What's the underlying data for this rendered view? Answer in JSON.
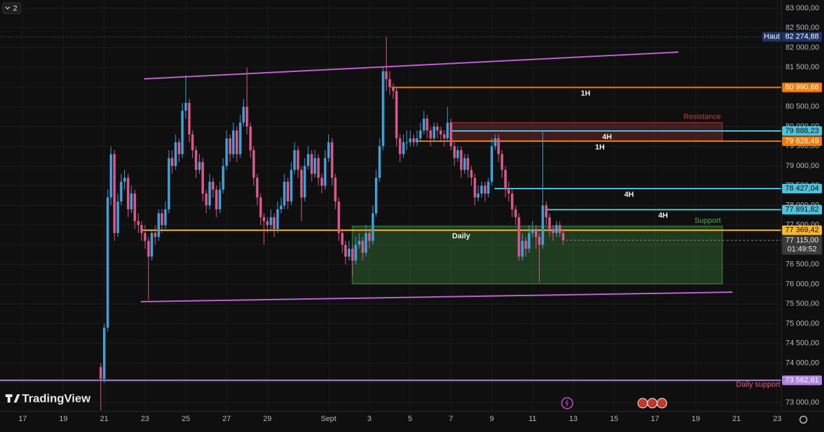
{
  "ui": {
    "layout_button": "2",
    "logo": "TradingView"
  },
  "chart_data": {
    "type": "candlestick",
    "up_color": "#3f9fd6",
    "down_color": "#d9588a",
    "xlim": [
      -1.11,
      37.2
    ],
    "ylim": [
      72774,
      83209
    ],
    "grid": true,
    "xticks": [
      {
        "value": 0,
        "label": "17"
      },
      {
        "value": 2,
        "label": "19"
      },
      {
        "value": 4,
        "label": "21"
      },
      {
        "value": 6,
        "label": "23"
      },
      {
        "value": 8,
        "label": "25"
      },
      {
        "value": 10,
        "label": "27"
      },
      {
        "value": 12,
        "label": "29"
      },
      {
        "value": 15,
        "label": "Sept"
      },
      {
        "value": 17,
        "label": "3"
      },
      {
        "value": 19,
        "label": "5"
      },
      {
        "value": 21,
        "label": "7"
      },
      {
        "value": 23,
        "label": "9"
      },
      {
        "value": 25,
        "label": "11"
      },
      {
        "value": 27,
        "label": "13"
      },
      {
        "value": 29,
        "label": "15"
      },
      {
        "value": 31,
        "label": "17"
      },
      {
        "value": 33,
        "label": "19"
      },
      {
        "value": 35,
        "label": "21"
      },
      {
        "value": 37,
        "label": "23"
      }
    ],
    "yticks": [
      {
        "value": 73000,
        "label": "73 000,00"
      },
      {
        "value": 73500,
        "label": "73 500,00"
      },
      {
        "value": 74000,
        "label": "74 000,00"
      },
      {
        "value": 74500,
        "label": "74 500,00"
      },
      {
        "value": 75000,
        "label": "75 000,00"
      },
      {
        "value": 75500,
        "label": "75 500,00"
      },
      {
        "value": 76000,
        "label": "76 000,00"
      },
      {
        "value": 76500,
        "label": "76 500,00"
      },
      {
        "value": 77000,
        "label": "77 000,00"
      },
      {
        "value": 77500,
        "label": "77 500,00"
      },
      {
        "value": 78000,
        "label": "78 000,00"
      },
      {
        "value": 78500,
        "label": "78 500,00"
      },
      {
        "value": 79000,
        "label": "79 000,00"
      },
      {
        "value": 79500,
        "label": "79 500,00"
      },
      {
        "value": 80000,
        "label": "80 000,00"
      },
      {
        "value": 80500,
        "label": "80 500,00"
      },
      {
        "value": 81000,
        "label": "81 000,00"
      },
      {
        "value": 81500,
        "label": "81 500,00"
      },
      {
        "value": 82000,
        "label": "82 000,00"
      },
      {
        "value": 82500,
        "label": "82 500,00"
      },
      {
        "value": 83000,
        "label": "83 000,00"
      }
    ],
    "x": [
      3.83,
      4,
      4.17,
      4.33,
      4.5,
      4.67,
      4.83,
      5,
      5.17,
      5.33,
      5.5,
      5.67,
      5.83,
      6,
      6.17,
      6.33,
      6.5,
      6.67,
      6.83,
      7,
      7.17,
      7.33,
      7.5,
      7.67,
      7.83,
      8,
      8.17,
      8.33,
      8.5,
      8.67,
      8.83,
      9,
      9.17,
      9.33,
      9.5,
      9.67,
      9.83,
      10,
      10.17,
      10.33,
      10.5,
      10.67,
      10.83,
      11,
      11.17,
      11.33,
      11.5,
      11.67,
      11.83,
      12,
      12.17,
      12.33,
      12.5,
      12.67,
      12.83,
      13,
      13.17,
      13.33,
      13.5,
      13.67,
      13.83,
      14,
      14.17,
      14.33,
      14.5,
      14.67,
      14.83,
      15,
      15.17,
      15.33,
      15.5,
      15.67,
      15.83,
      16,
      16.17,
      16.33,
      16.5,
      16.67,
      16.83,
      17,
      17.17,
      17.33,
      17.5,
      17.67,
      17.83,
      18,
      18.17,
      18.33,
      18.5,
      18.67,
      18.83,
      19,
      19.17,
      19.33,
      19.5,
      19.67,
      19.83,
      20,
      20.17,
      20.33,
      20.5,
      20.67,
      20.83,
      21,
      21.17,
      21.33,
      21.5,
      21.67,
      21.83,
      22,
      22.17,
      22.33,
      22.5,
      22.67,
      22.83,
      23,
      23.17,
      23.33,
      23.5,
      23.67,
      23.83,
      24,
      24.17,
      24.33,
      24.5,
      24.67,
      24.83,
      25,
      25.17,
      25.33,
      25.5,
      25.67,
      25.83,
      26,
      26.17,
      26.33,
      26.5
    ],
    "open": [
      73900,
      73600,
      74900,
      78200,
      79300,
      77300,
      78100,
      78600,
      78700,
      77900,
      78300,
      77600,
      77500,
      77300,
      77100,
      76700,
      77300,
      77200,
      77800,
      77500,
      77900,
      79200,
      79000,
      79600,
      79300,
      80400,
      80600,
      79800,
      79400,
      78900,
      79100,
      78300,
      78000,
      78600,
      78400,
      77900,
      78400,
      79000,
      79700,
      79300,
      79900,
      79300,
      80100,
      80500,
      80000,
      79400,
      78700,
      78200,
      77700,
      77600,
      77500,
      77700,
      77400,
      77900,
      78000,
      78600,
      78100,
      78900,
      79400,
      78900,
      78200,
      79000,
      79300,
      78800,
      79200,
      78700,
      78500,
      79200,
      79600,
      78700,
      78100,
      77300,
      77000,
      76700,
      76900,
      76600,
      77000,
      77100,
      76800,
      77300,
      77100,
      77800,
      78700,
      79500,
      81400,
      81200,
      81000,
      80900,
      79700,
      79300,
      79600,
      79600,
      79700,
      79600,
      79700,
      79900,
      80200,
      79900,
      79700,
      80000,
      79900,
      79800,
      79700,
      80100,
      79500,
      79200,
      79400,
      78900,
      79200,
      78900,
      78700,
      78200,
      78300,
      78500,
      78300,
      78600,
      79500,
      79700,
      79300,
      78900,
      78400,
      78300,
      77900,
      77700,
      76700,
      77100,
      76900,
      77300,
      77400,
      77200,
      77000,
      78000,
      77700,
      77400,
      77300,
      77500,
      77300
    ],
    "high": [
      74000,
      75000,
      78400,
      79500,
      79400,
      78300,
      78800,
      78900,
      78800,
      78500,
      78400,
      77800,
      77600,
      77500,
      77200,
      77400,
      77500,
      77900,
      77900,
      78100,
      79400,
      79400,
      79800,
      79700,
      80600,
      81300,
      80700,
      79900,
      79500,
      79300,
      79200,
      78400,
      78800,
      78700,
      78500,
      78600,
      79200,
      79900,
      79800,
      80100,
      80000,
      80300,
      80700,
      81500,
      80100,
      79500,
      78800,
      78300,
      77800,
      77700,
      77900,
      77800,
      78100,
      78200,
      78800,
      78700,
      79100,
      79600,
      79500,
      79000,
      79200,
      79500,
      79400,
      79400,
      79300,
      78800,
      79400,
      79800,
      79700,
      78800,
      78200,
      77400,
      77100,
      77100,
      77000,
      77200,
      77300,
      77200,
      77500,
      77400,
      78000,
      78900,
      79700,
      81500,
      82275,
      81400,
      81100,
      81000,
      79800,
      79800,
      79900,
      79900,
      79800,
      79900,
      80100,
      80400,
      80300,
      80000,
      80100,
      80100,
      80000,
      79900,
      80500,
      80200,
      79600,
      79500,
      79500,
      79300,
      79300,
      79000,
      78800,
      78500,
      78600,
      78600,
      78700,
      79700,
      79800,
      79800,
      79400,
      79000,
      78600,
      78400,
      78000,
      77800,
      77300,
      77200,
      77500,
      77600,
      77500,
      77300,
      79900,
      78100,
      77800,
      77500,
      77600,
      77600,
      77400
    ],
    "low": [
      72800,
      73500,
      74800,
      78000,
      77100,
      77200,
      78000,
      78400,
      77700,
      77800,
      77400,
      77300,
      77100,
      76900,
      75600,
      76600,
      77000,
      77100,
      77300,
      77400,
      77800,
      78800,
      78900,
      79100,
      79200,
      80200,
      79600,
      79200,
      78700,
      78800,
      78100,
      77800,
      77900,
      78200,
      77700,
      77800,
      78300,
      78900,
      79100,
      79200,
      79100,
      79200,
      80000,
      79800,
      79200,
      78500,
      78000,
      77500,
      77000,
      77300,
      77400,
      77200,
      77300,
      77800,
      77900,
      77900,
      78000,
      78800,
      78700,
      77600,
      78100,
      78900,
      78600,
      78700,
      78500,
      78300,
      78400,
      79100,
      78500,
      77900,
      77100,
      76800,
      76500,
      76600,
      76200,
      76500,
      76900,
      76600,
      76700,
      76900,
      77000,
      77700,
      78600,
      79400,
      80900,
      80800,
      80700,
      79500,
      79100,
      79200,
      79400,
      79500,
      79500,
      79500,
      79600,
      79800,
      79700,
      79500,
      79600,
      79700,
      79600,
      79500,
      79600,
      79400,
      79000,
      79100,
      78700,
      78800,
      78700,
      78500,
      78000,
      78100,
      78200,
      78100,
      78200,
      78500,
      79400,
      79100,
      78700,
      78200,
      78100,
      77700,
      77500,
      76600,
      76600,
      76700,
      76800,
      77200,
      76900,
      76050,
      76900,
      77500,
      77200,
      77100,
      77200,
      77200,
      77000
    ],
    "close": [
      73600,
      74900,
      78200,
      79300,
      77300,
      78100,
      78600,
      78700,
      77900,
      78300,
      77600,
      77500,
      77300,
      77100,
      76700,
      77300,
      77200,
      77800,
      77500,
      77900,
      79200,
      79000,
      79600,
      79300,
      80400,
      80600,
      79800,
      79400,
      78900,
      79100,
      78300,
      78000,
      78600,
      78400,
      77900,
      78400,
      79000,
      79700,
      79300,
      79900,
      79300,
      80100,
      80500,
      80000,
      79400,
      78700,
      78200,
      77700,
      77600,
      77500,
      77700,
      77400,
      77900,
      78000,
      78600,
      78100,
      78900,
      79400,
      78900,
      78200,
      79000,
      79300,
      78800,
      79200,
      78700,
      78500,
      79200,
      79600,
      78700,
      78100,
      77300,
      77000,
      76700,
      76900,
      76600,
      77000,
      77100,
      76800,
      77300,
      77100,
      77800,
      78700,
      79500,
      81400,
      81200,
      81000,
      80900,
      79700,
      79300,
      79600,
      79600,
      79700,
      79600,
      79700,
      79900,
      80200,
      79900,
      79700,
      80000,
      79900,
      79800,
      79700,
      80100,
      79500,
      79200,
      79400,
      78900,
      79200,
      78900,
      78700,
      78200,
      78300,
      78500,
      78300,
      78600,
      79500,
      79700,
      79300,
      78900,
      78400,
      78300,
      77900,
      77700,
      76700,
      77100,
      76900,
      77300,
      77400,
      77200,
      77000,
      78000,
      77700,
      77400,
      77300,
      77500,
      77300,
      77115
    ],
    "zones": [
      {
        "label": "Resistance",
        "top": 80100,
        "bottom": 79640,
        "x_start": 20.96,
        "x_end": 34.3,
        "color": "#c2403f"
      },
      {
        "label": "Support",
        "top": 77470,
        "bottom": 76010,
        "x_start": 16.16,
        "x_end": 34.3,
        "color": "#4caf50"
      }
    ],
    "channels": [
      {
        "color": "#c25fd4",
        "x": [
          5.96,
          32.15
        ],
        "y": [
          81209,
          81887
        ]
      },
      {
        "color": "#c25fd4",
        "x": [
          5.79,
          34.8
        ],
        "y": [
          75557,
          75800
        ]
      }
    ],
    "levels": [
      {
        "name": "Haut",
        "value": 82274.88,
        "label": "82 274,88",
        "color": "#1e3266",
        "x_start": -1.11
      },
      {
        "value": 80990.66,
        "label": "80 990,66",
        "color": "#f57c00",
        "x_start": 18.08,
        "tag": "1H",
        "tag_x": 27.6
      },
      {
        "value": 79888.23,
        "label": "79 888,23",
        "color": "#4cc3db",
        "x_start": 20.94,
        "tag": "4H",
        "tag_x": 28.65
      },
      {
        "value": 79628.49,
        "label": "79 628,49",
        "color": "#f57c00",
        "x_start": 19.26,
        "tag": "1H",
        "tag_x": 28.3
      },
      {
        "value": 78427.04,
        "label": "78 427,04",
        "color": "#4cc3db",
        "x_start": 23.13,
        "tag": "4H",
        "tag_x": 29.73
      },
      {
        "value": 77891.82,
        "label": "77 891,82",
        "color": "#4cc3db",
        "x_start": 25.66,
        "tag": "4H",
        "tag_x": 31.4
      },
      {
        "value": 77369.42,
        "label": "77 369,42",
        "color": "#f5b731",
        "x_start": 5.79,
        "tag": "Daily",
        "tag_x": 21.5
      },
      {
        "value": 73562.61,
        "label": "73 562,61",
        "color": "#b085e0",
        "x_start": -1.11
      }
    ],
    "annotations": [
      {
        "text": "Daily support",
        "x": 36.06,
        "y": 73452,
        "color": "#e0588a"
      }
    ],
    "current": {
      "value": 77115,
      "label": "77 115,00",
      "countdown": "01:49:52"
    }
  }
}
